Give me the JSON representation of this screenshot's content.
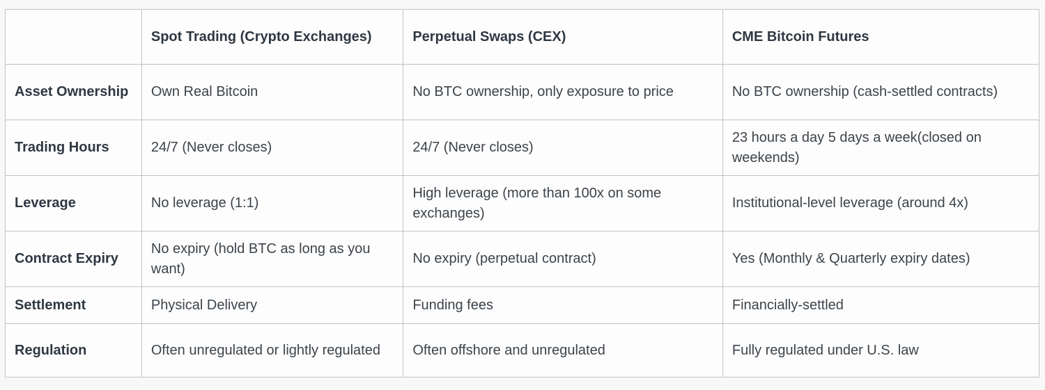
{
  "table": {
    "columns": [
      "",
      "Spot Trading (Crypto Exchanges)",
      "Perpetual Swaps (CEX)",
      "CME Bitcoin Futures"
    ],
    "rows": [
      {
        "label": "Asset Ownership",
        "cells": [
          "Own Real Bitcoin",
          "No BTC ownership, only exposure to price",
          "No BTC ownership (cash-settled contracts)"
        ]
      },
      {
        "label": "Trading Hours",
        "cells": [
          "24/7 (Never closes)",
          "24/7 (Never closes)",
          "23 hours a day 5 days a week(closed on weekends)"
        ]
      },
      {
        "label": "Leverage",
        "cells": [
          "No leverage (1:1)",
          "High leverage (more than 100x on some exchanges)",
          "Institutional-level leverage (around 4x)"
        ]
      },
      {
        "label": "Contract Expiry",
        "cells": [
          "No expiry (hold BTC as long as you want)",
          "No expiry (perpetual contract)",
          "Yes (Monthly & Quarterly expiry dates)"
        ]
      },
      {
        "label": "Settlement",
        "cells": [
          "Physical Delivery",
          "Funding fees",
          "Financially-settled"
        ]
      },
      {
        "label": "Regulation",
        "cells": [
          "Often unregulated or lightly regulated",
          "Often offshore and unregulated",
          "Fully regulated under U.S. law"
        ]
      }
    ]
  },
  "colors": {
    "page_background": "#f8f8f8",
    "cell_background": "#fdfdfd",
    "border": "#c2c2c2",
    "header_text": "#2f3842",
    "body_text": "#3c434a"
  }
}
